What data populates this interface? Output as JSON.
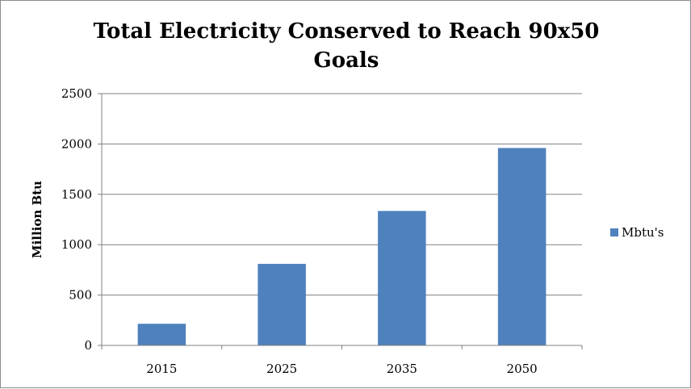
{
  "chart_data": {
    "type": "bar",
    "title_lines": [
      "Total Electricity Conserved to Reach 90x50",
      "Goals"
    ],
    "xlabel": "",
    "ylabel": "Million Btu",
    "categories": [
      "2015",
      "2025",
      "2035",
      "2050"
    ],
    "series": [
      {
        "name": "Mbtu's",
        "values": [
          215,
          810,
          1335,
          1960
        ],
        "color": "#4f81bd"
      }
    ],
    "ylim": [
      0,
      2500
    ],
    "yticks": [
      0,
      500,
      1000,
      1500,
      2000,
      2500
    ],
    "grid": true,
    "legend_position": "right"
  }
}
